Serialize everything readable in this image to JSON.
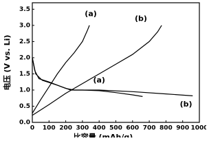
{
  "chart_data": {
    "type": "line",
    "x_label": "比容量 (mAh/g)",
    "y_label": "电压 (V vs. Li)",
    "xlim": [
      0,
      1000
    ],
    "xticks": [
      0,
      100,
      200,
      300,
      400,
      500,
      600,
      700,
      800,
      900,
      1000
    ],
    "ylim": [
      0,
      3.7
    ],
    "yticks": [
      {
        "value": 0,
        "label": "0.0"
      },
      {
        "value": 0.5,
        "label": "0.5"
      },
      {
        "value": 1,
        "label": "1.0"
      },
      {
        "value": 1.5,
        "label": "1.5"
      },
      {
        "value": 2,
        "label": "2.0"
      },
      {
        "value": 2.5,
        "label": "2.5"
      },
      {
        "value": 3,
        "label": "3.0"
      },
      {
        "value": 3.5,
        "label": "3.5"
      }
    ],
    "grid": false,
    "series": [
      {
        "color": "#000000",
        "x": [
          0,
          20,
          60,
          150,
          230,
          300,
          400,
          500,
          600,
          660
        ],
        "values": [
          2.0,
          1.5,
          1.3,
          1.15,
          1.0,
          1.0,
          0.98,
          0.92,
          0.85,
          0.8
        ]
      },
      {
        "color": "#000000",
        "x": [
          0,
          50,
          100,
          150,
          200,
          250,
          300,
          330,
          342
        ],
        "values": [
          0.28,
          0.7,
          1.1,
          1.5,
          1.85,
          2.15,
          2.5,
          2.85,
          3.0
        ]
      },
      {
        "color": "#000000",
        "x": [
          0,
          15,
          40,
          100,
          200,
          250,
          400,
          600,
          800,
          960
        ],
        "values": [
          2.0,
          1.6,
          1.35,
          1.25,
          1.05,
          1.0,
          1.0,
          0.95,
          0.88,
          0.82
        ]
      },
      {
        "color": "#000000",
        "x": [
          0,
          100,
          200,
          300,
          400,
          500,
          600,
          700,
          750,
          774
        ],
        "values": [
          0.22,
          0.55,
          0.9,
          1.2,
          1.5,
          1.8,
          2.1,
          2.5,
          2.8,
          3.0
        ]
      }
    ],
    "annotations": [
      {
        "text": "(a)",
        "x": 350,
        "y": 3.35
      },
      {
        "text": "(b)",
        "x": 650,
        "y": 3.2
      },
      {
        "text": "(a)",
        "x": 400,
        "y": 1.3
      },
      {
        "text": "(b)",
        "x": 920,
        "y": 0.55
      }
    ]
  }
}
